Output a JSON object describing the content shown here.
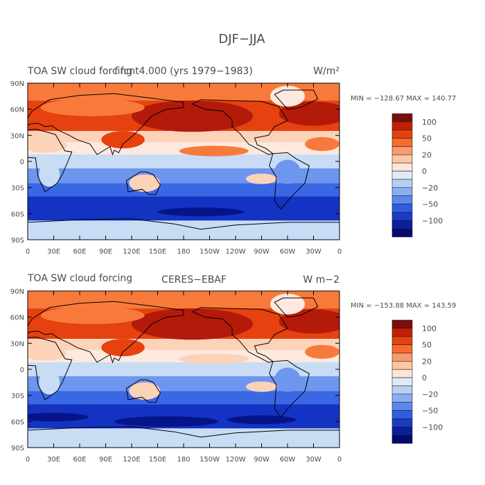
{
  "figure_title": "DJF−JJA",
  "panels": [
    {
      "title_left": "TOA SW cloud forcing",
      "title_center": "f.fcnt4.000 (yrs 1979−1983)",
      "units": "W/m²",
      "min": "MIN = −128.67",
      "max": "MAX = 140.77",
      "stats": "MIN = −128.67  MAX = 140.77"
    },
    {
      "title_left": "TOA SW cloud forcing",
      "title_center": "CERES−EBAF",
      "units": "W m−2",
      "min": "MIN = −153.88",
      "max": "MAX = 143.59",
      "stats": "MIN = −153.88  MAX = 143.59"
    }
  ],
  "lat_ticks": [
    "90N",
    "60N",
    "30N",
    "0",
    "30S",
    "60S",
    "90S"
  ],
  "lon_ticks": [
    "0",
    "30E",
    "60E",
    "90E",
    "120E",
    "150E",
    "180",
    "150W",
    "120W",
    "90W",
    "60W",
    "30W",
    "0"
  ],
  "colorbar": {
    "labels": [
      "100",
      "50",
      "20",
      "0",
      "−20",
      "−50",
      "−100"
    ],
    "colors": [
      "#7a0d0d",
      "#c41f06",
      "#e6420f",
      "#f76b2e",
      "#fa9a6a",
      "#fcc6a2",
      "#fde6d6",
      "#dcebf7",
      "#b6cff3",
      "#8aaef2",
      "#5c87ee",
      "#2f5ddf",
      "#1b3bc4",
      "#0d1e9b",
      "#050a6e"
    ]
  },
  "map_palette": {
    "deep_red": "#b31a0a",
    "red": "#e5420f",
    "orange": "#f87a3a",
    "light": "#fcd3b8",
    "pale": "#fde9de",
    "white": "#ffffff",
    "light_blue": "#c8dcf6",
    "blue": "#6e96ee",
    "mid_blue": "#3a67e4",
    "deep_blue": "#1333c3",
    "navy": "#06148a",
    "coast": "#000000"
  }
}
